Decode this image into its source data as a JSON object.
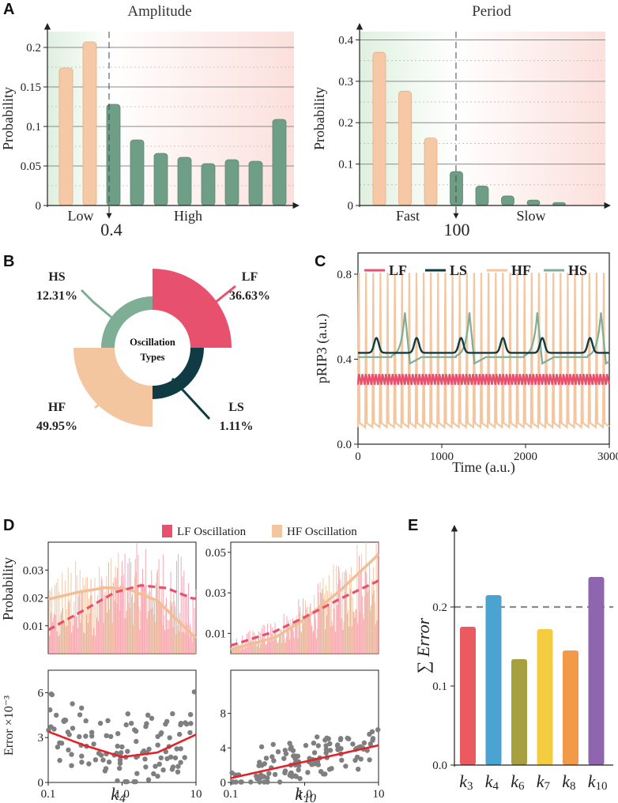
{
  "panels": {
    "A": "A",
    "B": "B",
    "C": "C",
    "D": "D",
    "E": "E"
  },
  "colors": {
    "peach": "#f5c9a6",
    "green": "#6f9e87",
    "lf": "#e8516e",
    "ls": "#103b44",
    "hf": "#f3c6a0",
    "hs": "#7fae96",
    "grey": "#7f7f7f",
    "fit_red": "#e0242a"
  },
  "chart_data": [
    {
      "id": "amplitude",
      "type": "bar",
      "title": "Amplitude",
      "ylabel": "Probability",
      "ylim": [
        0,
        0.22
      ],
      "yticks": [
        0,
        0.05,
        0.1,
        0.15,
        0.2
      ],
      "ytick_labels": [
        "0",
        "0.05",
        "0.1",
        "0.15",
        "0.2"
      ],
      "values": [
        0.174,
        0.207,
        0.128,
        0.083,
        0.066,
        0.061,
        0.053,
        0.058,
        0.056,
        0.109
      ],
      "low_count": 2,
      "threshold_label": "0.4",
      "low_label": "Low",
      "high_label": "High"
    },
    {
      "id": "period",
      "type": "bar",
      "title": "Period",
      "ylabel": "Probability",
      "ylim": [
        0,
        0.42
      ],
      "yticks": [
        0,
        0.1,
        0.2,
        0.3,
        0.4
      ],
      "ytick_labels": [
        "0",
        "0.1",
        "0.2",
        "0.3",
        "0.4"
      ],
      "values": [
        0.37,
        0.276,
        0.163,
        0.082,
        0.047,
        0.023,
        0.013,
        0.007
      ],
      "low_count": 3,
      "threshold_label": "100",
      "low_label": "Fast",
      "high_label": "Slow"
    },
    {
      "id": "oscillation_types",
      "type": "pie",
      "center_label_1": "Oscillation",
      "center_label_2": "Types",
      "slices": [
        {
          "key": "LF",
          "label": "LF",
          "value": 36.63,
          "pct": "36.63%"
        },
        {
          "key": "LS",
          "label": "LS",
          "value": 1.11,
          "pct": "1.11%"
        },
        {
          "key": "HF",
          "label": "HF",
          "value": 49.95,
          "pct": "49.95%"
        },
        {
          "key": "HS",
          "label": "HS",
          "value": 12.31,
          "pct": "12.31%"
        }
      ]
    },
    {
      "id": "timeseries",
      "type": "line",
      "xlabel": "Time (a.u.)",
      "ylabel": "pRIP3 (a.u.)",
      "xlim": [
        0,
        3000
      ],
      "ylim": [
        0,
        0.9
      ],
      "xticks": [
        0,
        1000,
        2000,
        3000
      ],
      "xtick_labels": [
        "0",
        "1000",
        "2000",
        "3000"
      ],
      "yticks": [
        0,
        0.4,
        0.8
      ],
      "ytick_labels": [
        "0.0",
        "0.4",
        "0.8"
      ],
      "legend": [
        "LF",
        "LS",
        "HF",
        "HS"
      ],
      "series": [
        {
          "name": "HF",
          "base": 0.08,
          "peak": 0.83,
          "period": 86
        },
        {
          "name": "LF",
          "low": 0.28,
          "high": 0.33,
          "period": 40
        },
        {
          "name": "LS",
          "base": 0.43,
          "peak": 0.5,
          "peaks_at": [
            220,
            700,
            1230,
            1730,
            2200,
            2770
          ]
        },
        {
          "name": "HS",
          "base": 0.41,
          "peak": 0.62,
          "peaks_at": [
            560,
            1330,
            2140,
            2900
          ]
        }
      ]
    },
    {
      "id": "k4_probability",
      "type": "bar",
      "legend": [
        "LF Oscillation",
        "HF Oscillation"
      ],
      "ylabel": "Probability",
      "xscale": "log",
      "xlim": [
        0.1,
        10
      ],
      "ylim": [
        0,
        0.04
      ],
      "yticks": [
        0.01,
        0.02,
        0.03
      ],
      "ytick_labels": [
        "0.01",
        "0.02",
        "0.03"
      ],
      "hf_fit": [
        [
          0.1,
          0.0195
        ],
        [
          0.25,
          0.022
        ],
        [
          0.6,
          0.0237
        ],
        [
          1.2,
          0.0232
        ],
        [
          3,
          0.019
        ],
        [
          10,
          0.0055
        ]
      ],
      "lf_fit": [
        [
          0.1,
          0.0085
        ],
        [
          0.3,
          0.0155
        ],
        [
          0.8,
          0.022
        ],
        [
          1.8,
          0.0245
        ],
        [
          4,
          0.0235
        ],
        [
          9,
          0.0198
        ]
      ]
    },
    {
      "id": "k10_probability",
      "type": "bar",
      "xscale": "log",
      "xlim": [
        0.1,
        10
      ],
      "ylim": [
        0,
        0.055
      ],
      "yticks": [
        0.01,
        0.03,
        0.05
      ],
      "ytick_labels": [
        "0.01",
        "0.03",
        "0.05"
      ],
      "hf_fit": [
        [
          0.1,
          0.002
        ],
        [
          0.4,
          0.008
        ],
        [
          1,
          0.017
        ],
        [
          3,
          0.031
        ],
        [
          10,
          0.049
        ]
      ],
      "lf_fit": [
        [
          0.1,
          0.004
        ],
        [
          0.4,
          0.011
        ],
        [
          1,
          0.018
        ],
        [
          3,
          0.027
        ],
        [
          10,
          0.036
        ]
      ]
    },
    {
      "id": "k4_error",
      "type": "scatter",
      "xlabel": "k",
      "xlabel_sub": "4",
      "ylabel": "Error ×10⁻³",
      "xscale": "log",
      "xlim": [
        0.1,
        10
      ],
      "ylim": [
        0,
        7.5
      ],
      "xticks": [
        0.1,
        1,
        10
      ],
      "xtick_labels": [
        "0.1",
        "1.0",
        "10"
      ],
      "yticks": [
        0,
        3,
        6
      ],
      "ytick_labels": [
        "0",
        "3",
        "6"
      ],
      "fit": [
        [
          0.1,
          3.4
        ],
        [
          0.3,
          2.5
        ],
        [
          1,
          1.7
        ],
        [
          3,
          2.0
        ],
        [
          10,
          3.2
        ]
      ]
    },
    {
      "id": "k10_error",
      "type": "scatter",
      "xlabel": "k",
      "xlabel_sub": "10",
      "xscale": "log",
      "xlim": [
        0.1,
        10
      ],
      "ylim": [
        0,
        13
      ],
      "xticks": [
        0.1,
        1,
        10
      ],
      "xtick_labels": [
        "0.1",
        "1.0",
        "10"
      ],
      "yticks": [
        0,
        4,
        8
      ],
      "ytick_labels": [
        "0",
        "4",
        "8"
      ],
      "fit": [
        [
          0.1,
          0.5
        ],
        [
          1,
          2.4
        ],
        [
          10,
          4.3
        ]
      ]
    },
    {
      "id": "sum_error",
      "type": "bar",
      "ylabel": "∑ Error",
      "ylim": [
        0,
        0.3
      ],
      "yticks": [
        0,
        0.1,
        0.2
      ],
      "ytick_labels": [
        "0.0",
        "0.1",
        "0.2"
      ],
      "reference_line": 0.2,
      "categories": [
        {
          "base": "k",
          "sub": "3",
          "value": 0.175,
          "color": "#ea5a60"
        },
        {
          "base": "k",
          "sub": "4",
          "value": 0.215,
          "color": "#4aa3d0"
        },
        {
          "base": "k",
          "sub": "6",
          "value": 0.134,
          "color": "#a6a040"
        },
        {
          "base": "k",
          "sub": "7",
          "value": 0.172,
          "color": "#f4cc40"
        },
        {
          "base": "k",
          "sub": "8",
          "value": 0.145,
          "color": "#f29a48"
        },
        {
          "base": "k",
          "sub": "10",
          "value": 0.238,
          "color": "#9065b0"
        }
      ]
    }
  ]
}
